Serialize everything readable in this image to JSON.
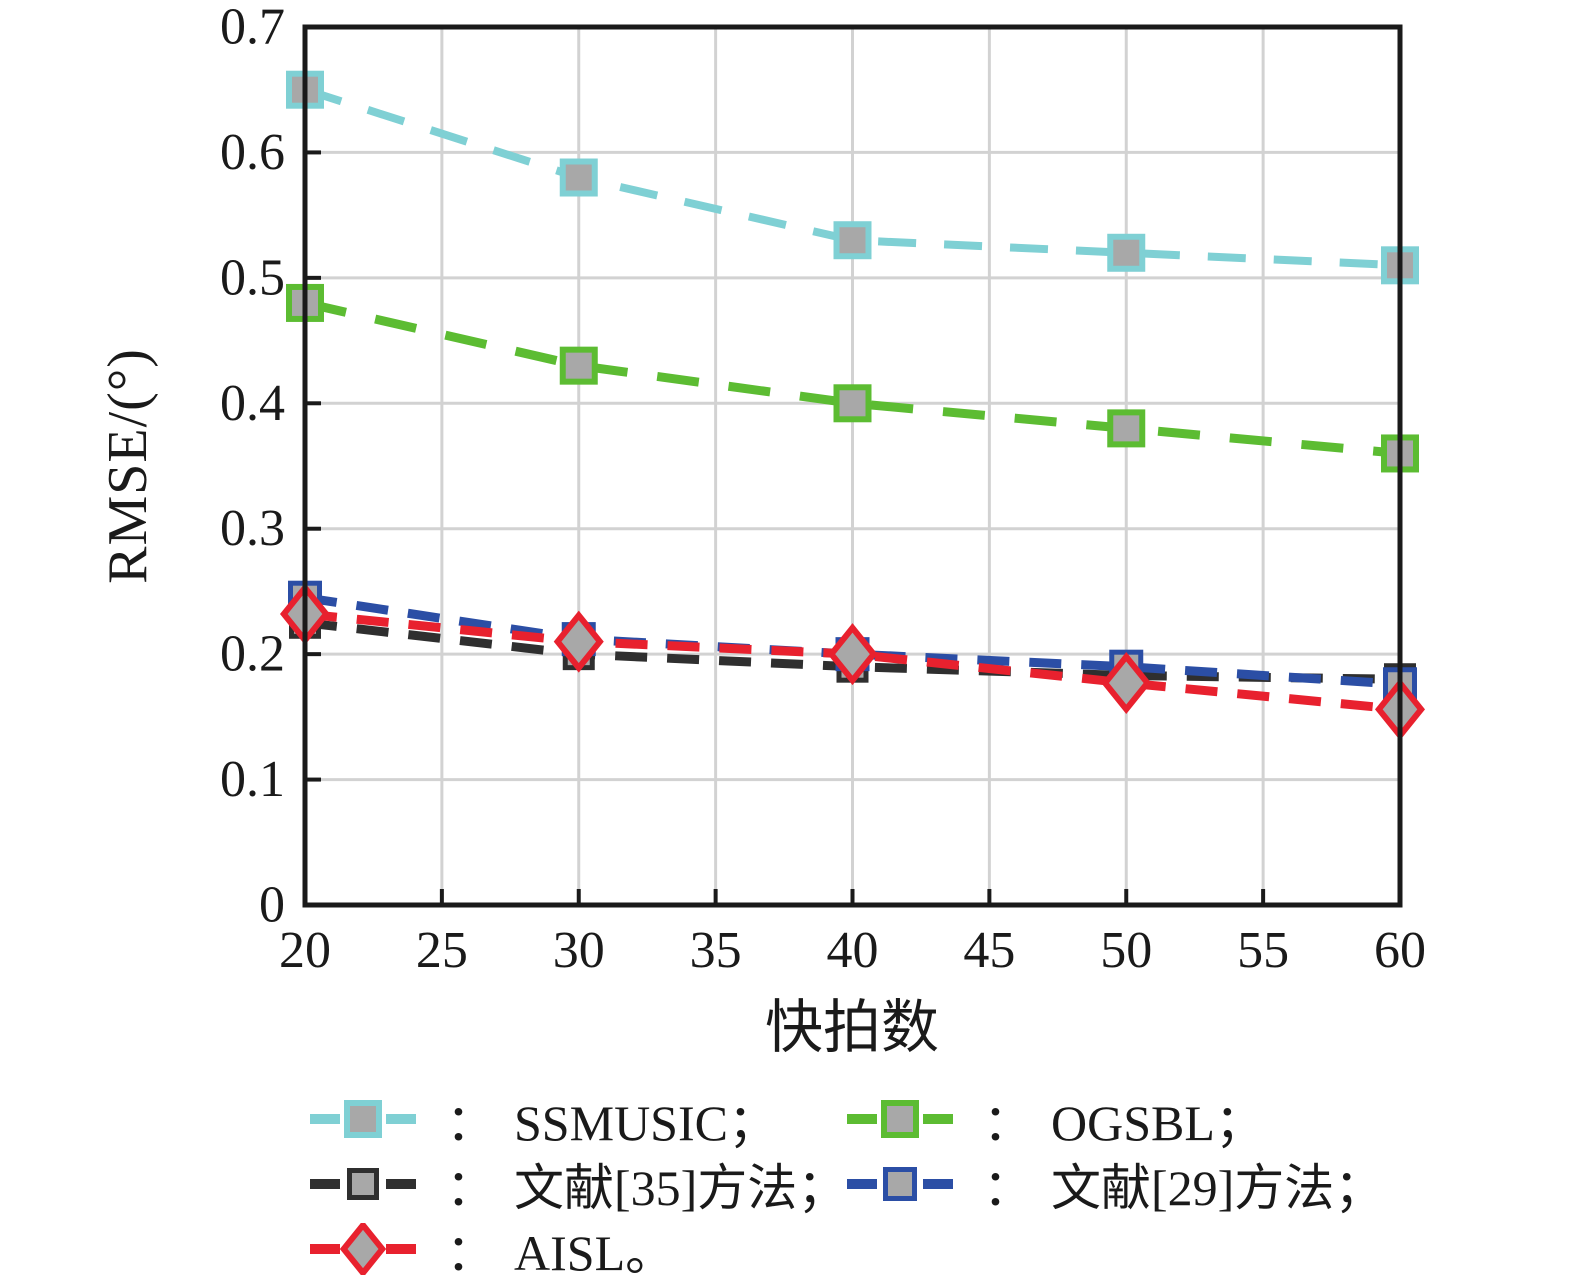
{
  "chart_data": {
    "type": "line",
    "title": "",
    "xlabel": "快拍数",
    "ylabel": "RMSE/(°)",
    "xlim": [
      20,
      60
    ],
    "ylim": [
      0,
      0.7
    ],
    "xticks": [
      "20",
      "25",
      "30",
      "35",
      "40",
      "45",
      "50",
      "55",
      "60"
    ],
    "yticks": [
      "0",
      "0.1",
      "0.2",
      "0.3",
      "0.4",
      "0.5",
      "0.6",
      "0.7"
    ],
    "grid": true,
    "line_style": "dashed",
    "marker_fill": "#a8a8a8",
    "axis_color": "#1a1a1a",
    "grid_color": "#d2d2d2",
    "x": [
      20,
      30,
      40,
      50,
      60
    ],
    "series": [
      {
        "name": "SSMUSIC",
        "color": "#7fd0d4",
        "marker": "square",
        "marker_size": 32,
        "marker_stroke": 6,
        "stroke_width": 8,
        "dash": [
          38,
          28
        ],
        "values": [
          0.65,
          0.58,
          0.53,
          0.52,
          0.51
        ]
      },
      {
        "name": "OGSBL",
        "color": "#5cbc32",
        "marker": "square",
        "marker_size": 32,
        "marker_stroke": 6,
        "stroke_width": 9,
        "dash": [
          42,
          30
        ],
        "values": [
          0.48,
          0.43,
          0.4,
          0.38,
          0.36
        ]
      },
      {
        "name": "文献[35]方法",
        "color": "#2f2f2f",
        "marker": "square",
        "marker_size": 27,
        "marker_stroke": 5,
        "stroke_width": 9,
        "dash": [
          32,
          20
        ],
        "values": [
          0.225,
          0.2,
          0.19,
          0.183,
          0.18
        ]
      },
      {
        "name": "文献[29]方法",
        "color": "#2b4ea5",
        "marker": "square",
        "marker_size": 29,
        "marker_stroke": 5,
        "stroke_width": 9,
        "dash": [
          32,
          20
        ],
        "values": [
          0.245,
          0.212,
          0.2,
          0.19,
          0.176
        ]
      },
      {
        "name": "AISL",
        "color": "#e8212e",
        "marker": "diamond",
        "marker_size": 46,
        "marker_stroke": 6,
        "stroke_width": 9,
        "dash": [
          32,
          20
        ],
        "values": [
          0.232,
          0.21,
          0.2,
          0.177,
          0.156
        ]
      }
    ],
    "legend_position": "below"
  },
  "legend": {
    "colon": "：",
    "columns": [
      [
        {
          "series": 0,
          "label": "SSMUSIC；"
        },
        {
          "series": 2,
          "label": "文献[35]方法；"
        },
        {
          "series": 4,
          "label": "AISL。"
        }
      ],
      [
        {
          "series": 1,
          "label": "OGSBL；"
        },
        {
          "series": 3,
          "label": "文献[29]方法；"
        }
      ]
    ]
  }
}
